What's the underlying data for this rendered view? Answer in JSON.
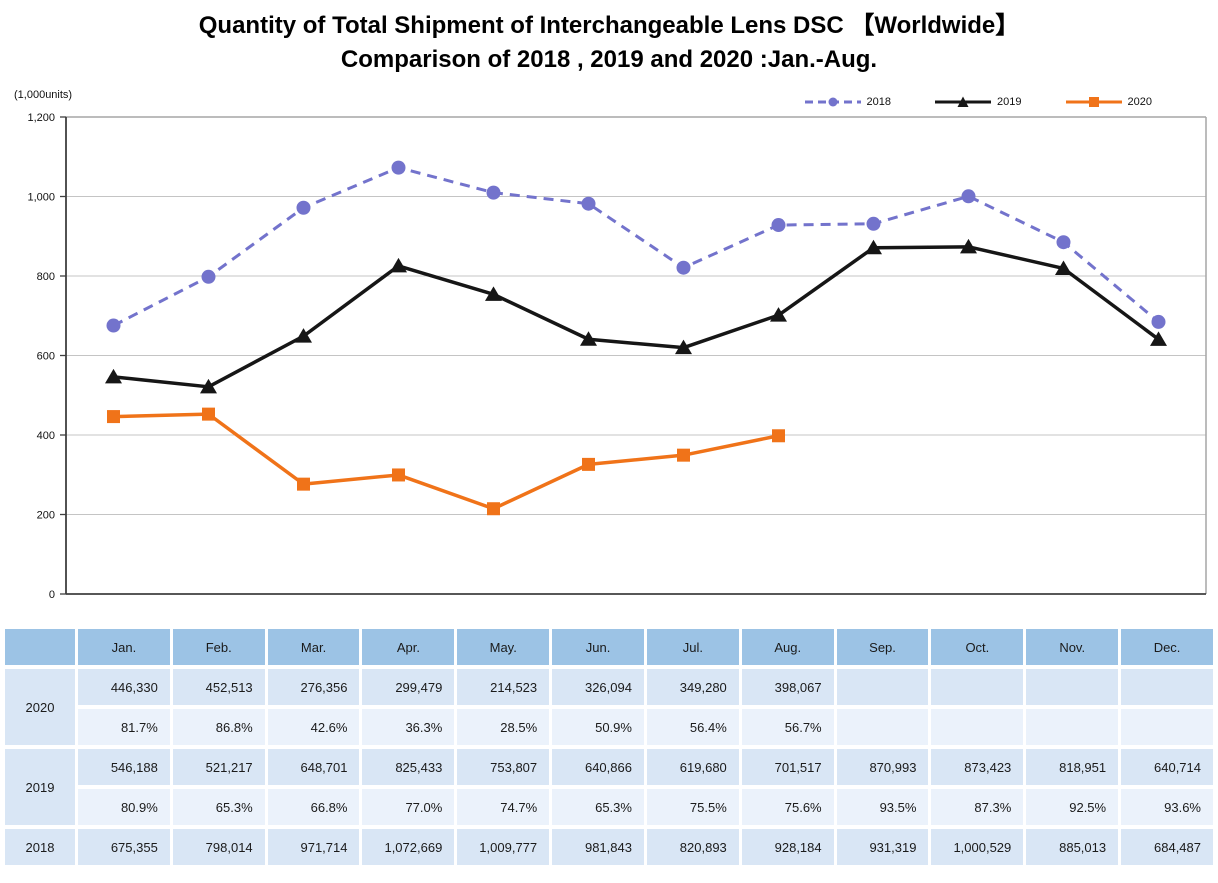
{
  "title": {
    "line1": "Quantity of Total Shipment of Interchangeable Lens DSC 【Worldwide】",
    "line2": "Comparison of 2018 , 2019 and 2020 :Jan.-Aug."
  },
  "chart": {
    "unit_label": "(1,000units)",
    "y_ticks": [
      "1,200",
      "1,000",
      "800",
      "600",
      "400",
      "200",
      "0"
    ],
    "colors": {
      "series_2018": "#7373CC",
      "series_2019": "#161616",
      "series_2020": "#F07319",
      "gridline": "#C4C4C4",
      "border_light": "#A6A6A6",
      "axis_dark": "#3F3F3F",
      "table_header": "#9CC3E5",
      "table_row_units": "#D9E6F5",
      "table_row_pct": "#EBF2FB"
    }
  },
  "chart_data": {
    "type": "line",
    "title": "Quantity of Total Shipment of Interchangeable Lens DSC 【Worldwide】 Comparison of 2018 , 2019 and 2020 :Jan.-Aug.",
    "ylabel": "(1,000units)",
    "ylim": [
      0,
      1200
    ],
    "y_tick_interval": 200,
    "grid": true,
    "legend_position": "top-right",
    "categories": [
      "Jan.",
      "Feb.",
      "Mar.",
      "Apr.",
      "May.",
      "Jun.",
      "Jul.",
      "Aug.",
      "Sep.",
      "Oct.",
      "Nov.",
      "Dec."
    ],
    "series": [
      {
        "name": "2018",
        "color": "#7373CC",
        "line_style": "dashed",
        "marker": "circle",
        "values": [
          675355,
          798014,
          971714,
          1072669,
          1009777,
          981843,
          820893,
          928184,
          931319,
          1000529,
          885013,
          684487
        ]
      },
      {
        "name": "2019",
        "color": "#161616",
        "line_style": "solid",
        "marker": "triangle",
        "values": [
          546188,
          521217,
          648701,
          825433,
          753807,
          640866,
          619680,
          701517,
          870993,
          873423,
          818951,
          640714
        ]
      },
      {
        "name": "2020",
        "color": "#F07319",
        "line_style": "solid",
        "marker": "square",
        "values": [
          446330,
          452513,
          276356,
          299479,
          214523,
          326094,
          349280,
          398067
        ]
      }
    ]
  },
  "table": {
    "columns": [
      "",
      "Jan.",
      "Feb.",
      "Mar.",
      "Apr.",
      "May.",
      "Jun.",
      "Jul.",
      "Aug.",
      "Sep.",
      "Oct.",
      "Nov.",
      "Dec."
    ],
    "row_groups": [
      {
        "year": "2020",
        "units": [
          "446,330",
          "452,513",
          "276,356",
          "299,479",
          "214,523",
          "326,094",
          "349,280",
          "398,067",
          "",
          "",
          "",
          ""
        ],
        "yoy": [
          "81.7%",
          "86.8%",
          "42.6%",
          "36.3%",
          "28.5%",
          "50.9%",
          "56.4%",
          "56.7%",
          "",
          "",
          "",
          ""
        ]
      },
      {
        "year": "2019",
        "units": [
          "546,188",
          "521,217",
          "648,701",
          "825,433",
          "753,807",
          "640,866",
          "619,680",
          "701,517",
          "870,993",
          "873,423",
          "818,951",
          "640,714"
        ],
        "yoy": [
          "80.9%",
          "65.3%",
          "66.8%",
          "77.0%",
          "74.7%",
          "65.3%",
          "75.5%",
          "75.6%",
          "93.5%",
          "87.3%",
          "92.5%",
          "93.6%"
        ]
      },
      {
        "year": "2018",
        "units": [
          "675,355",
          "798,014",
          "971,714",
          "1,072,669",
          "1,009,777",
          "981,843",
          "820,893",
          "928,184",
          "931,319",
          "1,000,529",
          "885,013",
          "684,487"
        ]
      }
    ]
  }
}
